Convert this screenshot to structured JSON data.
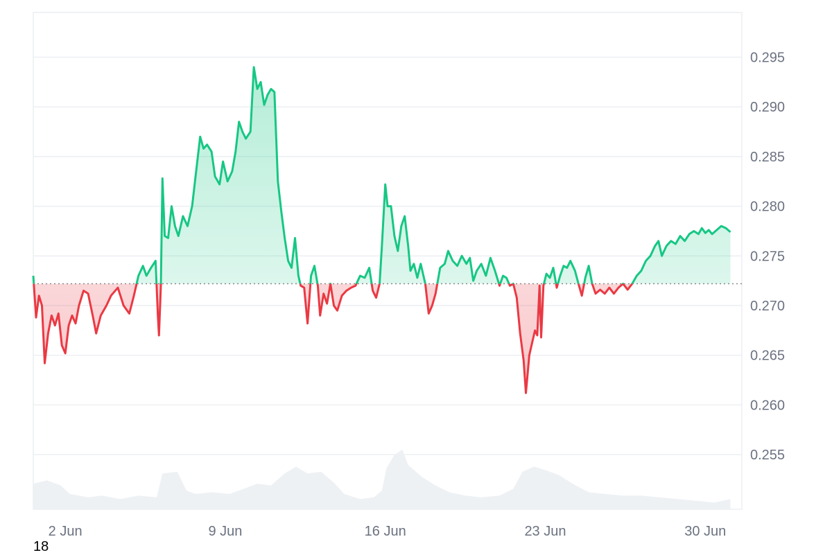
{
  "corner_label": "18",
  "colors": {
    "up_line": "#16c784",
    "up_fill": "#16c784",
    "down_line": "#ea3943",
    "down_fill": "#ea3943",
    "volume": "#eef1f4",
    "grid": "#eceff3",
    "baseline": "#888888"
  },
  "chart_data": {
    "type": "area",
    "baseline": 0.2722,
    "ylim": [
      0.2495,
      0.2995
    ],
    "y_ticks": [
      "0.295",
      "0.290",
      "0.285",
      "0.280",
      "0.275",
      "0.270",
      "0.265",
      "0.260",
      "0.255"
    ],
    "x_ticks": [
      {
        "label": "2 Jun",
        "day": 2
      },
      {
        "label": "9 Jun",
        "day": 9
      },
      {
        "label": "16 Jun",
        "day": 16
      },
      {
        "label": "23 Jun",
        "day": 23
      },
      {
        "label": "30 Jun",
        "day": 30
      }
    ],
    "x_range_days": [
      0.6,
      31.6
    ],
    "grid": true,
    "price_series": [
      [
        0.6,
        0.273
      ],
      [
        0.72,
        0.2688
      ],
      [
        0.85,
        0.271
      ],
      [
        0.98,
        0.27
      ],
      [
        1.1,
        0.2642
      ],
      [
        1.25,
        0.2672
      ],
      [
        1.4,
        0.269
      ],
      [
        1.55,
        0.268
      ],
      [
        1.7,
        0.2692
      ],
      [
        1.85,
        0.266
      ],
      [
        2.0,
        0.2652
      ],
      [
        2.15,
        0.268
      ],
      [
        2.3,
        0.269
      ],
      [
        2.45,
        0.2682
      ],
      [
        2.6,
        0.27
      ],
      [
        2.8,
        0.2715
      ],
      [
        3.0,
        0.2712
      ],
      [
        3.2,
        0.269
      ],
      [
        3.35,
        0.2672
      ],
      [
        3.55,
        0.269
      ],
      [
        3.8,
        0.27
      ],
      [
        4.0,
        0.271
      ],
      [
        4.3,
        0.2718
      ],
      [
        4.55,
        0.27
      ],
      [
        4.8,
        0.2692
      ],
      [
        5.0,
        0.271
      ],
      [
        5.2,
        0.273
      ],
      [
        5.4,
        0.274
      ],
      [
        5.55,
        0.273
      ],
      [
        5.75,
        0.2738
      ],
      [
        5.95,
        0.2745
      ],
      [
        6.05,
        0.269
      ],
      [
        6.1,
        0.267
      ],
      [
        6.18,
        0.272
      ],
      [
        6.25,
        0.2828
      ],
      [
        6.35,
        0.277
      ],
      [
        6.5,
        0.2768
      ],
      [
        6.65,
        0.28
      ],
      [
        6.8,
        0.278
      ],
      [
        6.95,
        0.277
      ],
      [
        7.15,
        0.279
      ],
      [
        7.35,
        0.278
      ],
      [
        7.55,
        0.28
      ],
      [
        7.75,
        0.284
      ],
      [
        7.9,
        0.287
      ],
      [
        8.05,
        0.2858
      ],
      [
        8.2,
        0.2862
      ],
      [
        8.4,
        0.2855
      ],
      [
        8.55,
        0.283
      ],
      [
        8.75,
        0.2822
      ],
      [
        8.9,
        0.2845
      ],
      [
        9.1,
        0.2825
      ],
      [
        9.3,
        0.2835
      ],
      [
        9.45,
        0.2855
      ],
      [
        9.6,
        0.2885
      ],
      [
        9.75,
        0.2875
      ],
      [
        9.9,
        0.2868
      ],
      [
        10.1,
        0.2875
      ],
      [
        10.25,
        0.294
      ],
      [
        10.4,
        0.2918
      ],
      [
        10.55,
        0.2925
      ],
      [
        10.7,
        0.2902
      ],
      [
        10.85,
        0.2912
      ],
      [
        11.0,
        0.2918
      ],
      [
        11.15,
        0.2915
      ],
      [
        11.3,
        0.2825
      ],
      [
        11.45,
        0.2795
      ],
      [
        11.6,
        0.2768
      ],
      [
        11.75,
        0.2745
      ],
      [
        11.9,
        0.2738
      ],
      [
        12.05,
        0.2768
      ],
      [
        12.2,
        0.273
      ],
      [
        12.3,
        0.272
      ],
      [
        12.45,
        0.2718
      ],
      [
        12.6,
        0.2682
      ],
      [
        12.75,
        0.273
      ],
      [
        12.9,
        0.274
      ],
      [
        13.05,
        0.272
      ],
      [
        13.15,
        0.269
      ],
      [
        13.3,
        0.2712
      ],
      [
        13.45,
        0.2702
      ],
      [
        13.6,
        0.2722
      ],
      [
        13.75,
        0.27
      ],
      [
        13.9,
        0.2695
      ],
      [
        14.1,
        0.271
      ],
      [
        14.3,
        0.2715
      ],
      [
        14.5,
        0.2718
      ],
      [
        14.7,
        0.272
      ],
      [
        14.9,
        0.273
      ],
      [
        15.1,
        0.2728
      ],
      [
        15.3,
        0.2738
      ],
      [
        15.45,
        0.2715
      ],
      [
        15.6,
        0.2708
      ],
      [
        15.75,
        0.2722
      ],
      [
        15.85,
        0.276
      ],
      [
        16.0,
        0.2822
      ],
      [
        16.1,
        0.28
      ],
      [
        16.25,
        0.28
      ],
      [
        16.4,
        0.277
      ],
      [
        16.55,
        0.2755
      ],
      [
        16.7,
        0.278
      ],
      [
        16.85,
        0.279
      ],
      [
        17.0,
        0.276
      ],
      [
        17.1,
        0.2735
      ],
      [
        17.25,
        0.2742
      ],
      [
        17.4,
        0.2728
      ],
      [
        17.55,
        0.2742
      ],
      [
        17.75,
        0.2722
      ],
      [
        17.9,
        0.2692
      ],
      [
        18.05,
        0.27
      ],
      [
        18.2,
        0.2712
      ],
      [
        18.4,
        0.2738
      ],
      [
        18.6,
        0.2742
      ],
      [
        18.75,
        0.2755
      ],
      [
        18.95,
        0.2745
      ],
      [
        19.15,
        0.274
      ],
      [
        19.35,
        0.275
      ],
      [
        19.55,
        0.2742
      ],
      [
        19.7,
        0.2748
      ],
      [
        19.85,
        0.2725
      ],
      [
        20.0,
        0.2735
      ],
      [
        20.2,
        0.2742
      ],
      [
        20.4,
        0.273
      ],
      [
        20.6,
        0.2748
      ],
      [
        20.8,
        0.2735
      ],
      [
        21.0,
        0.272
      ],
      [
        21.15,
        0.273
      ],
      [
        21.3,
        0.2728
      ],
      [
        21.45,
        0.272
      ],
      [
        21.6,
        0.2722
      ],
      [
        21.75,
        0.2708
      ],
      [
        21.9,
        0.2672
      ],
      [
        22.05,
        0.2645
      ],
      [
        22.15,
        0.2612
      ],
      [
        22.3,
        0.265
      ],
      [
        22.45,
        0.2665
      ],
      [
        22.55,
        0.2675
      ],
      [
        22.65,
        0.267
      ],
      [
        22.75,
        0.272
      ],
      [
        22.82,
        0.2668
      ],
      [
        22.92,
        0.272
      ],
      [
        23.05,
        0.2732
      ],
      [
        23.2,
        0.2728
      ],
      [
        23.35,
        0.2738
      ],
      [
        23.5,
        0.2718
      ],
      [
        23.65,
        0.273
      ],
      [
        23.8,
        0.274
      ],
      [
        23.95,
        0.2738
      ],
      [
        24.1,
        0.2745
      ],
      [
        24.3,
        0.2735
      ],
      [
        24.45,
        0.2722
      ],
      [
        24.6,
        0.271
      ],
      [
        24.75,
        0.2728
      ],
      [
        24.9,
        0.274
      ],
      [
        25.05,
        0.2722
      ],
      [
        25.2,
        0.2712
      ],
      [
        25.4,
        0.2716
      ],
      [
        25.6,
        0.2712
      ],
      [
        25.8,
        0.2718
      ],
      [
        26.0,
        0.2712
      ],
      [
        26.2,
        0.2718
      ],
      [
        26.4,
        0.2722
      ],
      [
        26.6,
        0.2716
      ],
      [
        26.8,
        0.2722
      ],
      [
        27.0,
        0.273
      ],
      [
        27.2,
        0.2735
      ],
      [
        27.4,
        0.2745
      ],
      [
        27.6,
        0.275
      ],
      [
        27.8,
        0.276
      ],
      [
        27.95,
        0.2765
      ],
      [
        28.1,
        0.275
      ],
      [
        28.3,
        0.276
      ],
      [
        28.5,
        0.2765
      ],
      [
        28.7,
        0.2762
      ],
      [
        28.9,
        0.277
      ],
      [
        29.1,
        0.2765
      ],
      [
        29.3,
        0.2772
      ],
      [
        29.5,
        0.2775
      ],
      [
        29.7,
        0.2772
      ],
      [
        29.85,
        0.2778
      ],
      [
        30.0,
        0.2773
      ],
      [
        30.15,
        0.2776
      ],
      [
        30.3,
        0.2772
      ],
      [
        30.5,
        0.2776
      ],
      [
        30.7,
        0.278
      ],
      [
        30.9,
        0.2778
      ],
      [
        31.1,
        0.2774
      ]
    ],
    "volume_series": [
      [
        0.6,
        0.3
      ],
      [
        1.2,
        0.34
      ],
      [
        1.8,
        0.28
      ],
      [
        2.2,
        0.18
      ],
      [
        3.0,
        0.14
      ],
      [
        3.6,
        0.16
      ],
      [
        4.4,
        0.12
      ],
      [
        5.2,
        0.16
      ],
      [
        6.0,
        0.14
      ],
      [
        6.25,
        0.42
      ],
      [
        6.9,
        0.44
      ],
      [
        7.3,
        0.22
      ],
      [
        7.7,
        0.18
      ],
      [
        8.4,
        0.2
      ],
      [
        9.2,
        0.18
      ],
      [
        9.8,
        0.24
      ],
      [
        10.4,
        0.3
      ],
      [
        11.0,
        0.28
      ],
      [
        11.6,
        0.42
      ],
      [
        12.1,
        0.5
      ],
      [
        12.6,
        0.42
      ],
      [
        13.2,
        0.44
      ],
      [
        13.8,
        0.3
      ],
      [
        14.2,
        0.18
      ],
      [
        14.9,
        0.12
      ],
      [
        15.5,
        0.14
      ],
      [
        15.85,
        0.22
      ],
      [
        16.05,
        0.48
      ],
      [
        16.4,
        0.64
      ],
      [
        16.75,
        0.7
      ],
      [
        17.0,
        0.52
      ],
      [
        17.6,
        0.38
      ],
      [
        18.2,
        0.28
      ],
      [
        18.8,
        0.2
      ],
      [
        19.5,
        0.16
      ],
      [
        20.2,
        0.14
      ],
      [
        21.0,
        0.16
      ],
      [
        21.6,
        0.24
      ],
      [
        22.0,
        0.44
      ],
      [
        22.5,
        0.5
      ],
      [
        23.0,
        0.46
      ],
      [
        23.6,
        0.4
      ],
      [
        24.2,
        0.3
      ],
      [
        24.9,
        0.2
      ],
      [
        25.6,
        0.18
      ],
      [
        26.4,
        0.16
      ],
      [
        27.2,
        0.16
      ],
      [
        28.0,
        0.14
      ],
      [
        28.8,
        0.12
      ],
      [
        29.6,
        0.1
      ],
      [
        30.4,
        0.08
      ],
      [
        31.1,
        0.12
      ]
    ]
  }
}
